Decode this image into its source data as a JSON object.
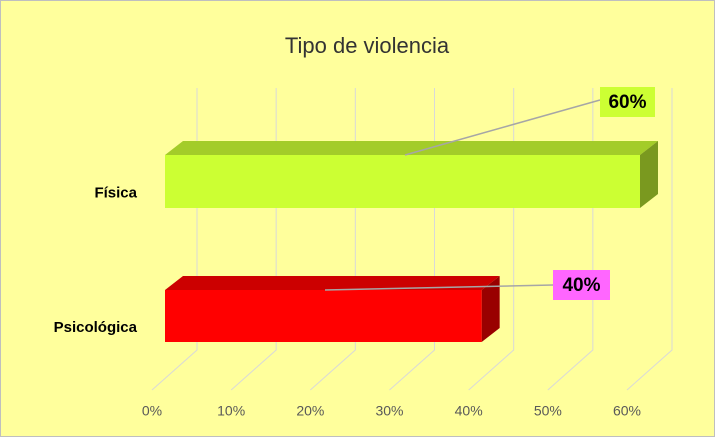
{
  "chart_data": {
    "type": "bar3d_horizontal",
    "title": "Tipo de violencia",
    "categories": [
      "Física",
      "Psicológica"
    ],
    "values": [
      60,
      40
    ],
    "value_labels": [
      "60%",
      "40%"
    ],
    "colors": [
      "#ccff33",
      "#ff0000"
    ],
    "label_colors": [
      "#ccff33",
      "#ff66ff"
    ],
    "xlim": [
      0,
      60
    ],
    "xticks": [
      {
        "value": 0,
        "label": "0%"
      },
      {
        "value": 10,
        "label": "10%"
      },
      {
        "value": 20,
        "label": "20%"
      },
      {
        "value": 30,
        "label": "30%"
      },
      {
        "value": 40,
        "label": "40%"
      },
      {
        "value": 50,
        "label": "50%"
      },
      {
        "value": 60,
        "label": "60%"
      }
    ],
    "grid": true,
    "background": "#ffff9c"
  }
}
